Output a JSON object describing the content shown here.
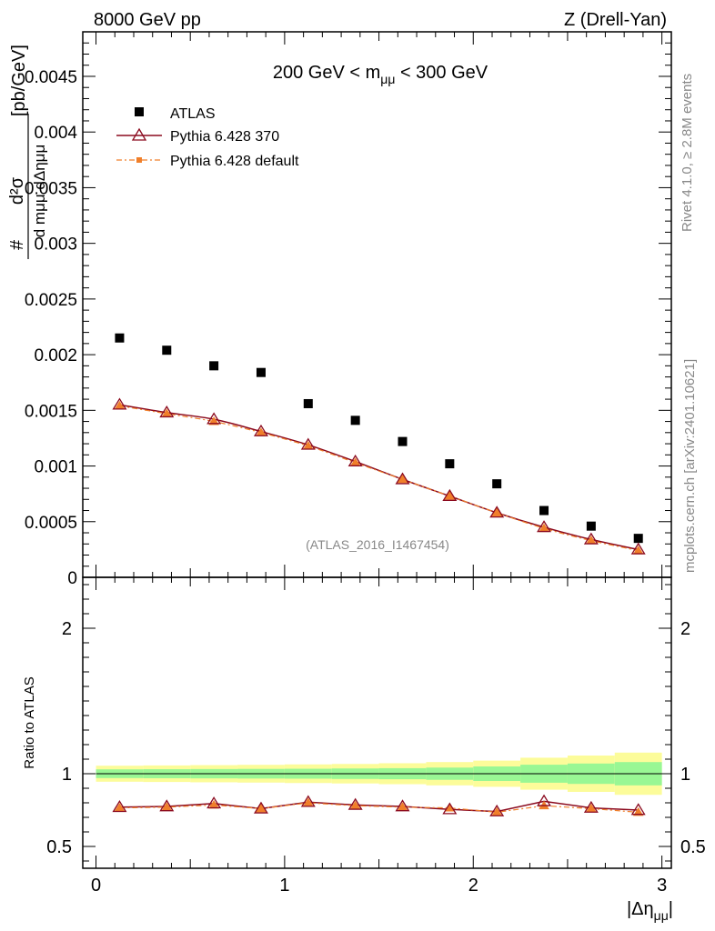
{
  "header": {
    "left": "8000 GeV pp",
    "right": "Z (Drell-Yan)"
  },
  "side": {
    "rivet": "Rivet 4.1.0, ≥ 2.8M events",
    "mcplots": "mcplots.cern.ch [arXiv:2401.10621]"
  },
  "colors": {
    "atlas": "#000000",
    "pythia370": "#8b0a1e",
    "pythia_default": "#f07f2a",
    "band_inner": "#99f794",
    "band_outer": "#fcfc9a"
  },
  "chart_data": [
    {
      "type": "scatter",
      "title": "200 GeV < m_μμ < 300 GeV",
      "title_parts": {
        "pre": "200 GeV < m",
        "sub": "μμ",
        "post": " < 300 GeV"
      },
      "ylabel": "d²σ / d m_μμ dΔη_μμ [pb/GeV]",
      "ylabel_parts": {
        "top": "d²σ",
        "bottom": "d mμμ dΔημμ",
        "hash": "#",
        "unit": "[pb/GeV]"
      },
      "watermark": "(ATLAS_2016_I1467454)",
      "xlim": [
        -0.07,
        3.05
      ],
      "ylim": [
        0,
        0.0049
      ],
      "yticks": [
        0,
        0.0005,
        0.001,
        0.0015,
        0.002,
        0.0025,
        0.003,
        0.0035,
        0.004,
        0.0045
      ],
      "ytick_labels": [
        "0",
        "0.0005",
        "0.001",
        "0.0015",
        "0.002",
        "0.0025",
        "0.003",
        "0.0035",
        "0.004",
        "0.0045"
      ],
      "legend_position": "top-left",
      "x": [
        0.125,
        0.375,
        0.625,
        0.875,
        1.125,
        1.375,
        1.625,
        1.875,
        2.125,
        2.375,
        2.625,
        2.875
      ],
      "series": [
        {
          "name": "ATLAS",
          "marker": "square",
          "values": [
            0.00215,
            0.00204,
            0.0019,
            0.00184,
            0.00156,
            0.00141,
            0.00122,
            0.00102,
            0.00084,
            0.0006,
            0.00046,
            0.00035
          ]
        },
        {
          "name": "Pythia 6.428 370",
          "marker": "triangle",
          "values": [
            0.00155,
            0.00148,
            0.00142,
            0.00131,
            0.00119,
            0.00104,
            0.00088,
            0.00073,
            0.00058,
            0.00045,
            0.00034,
            0.00025
          ]
        },
        {
          "name": "Pythia 6.428 default",
          "marker": "small-square",
          "values": [
            0.00154,
            0.00147,
            0.0014,
            0.0013,
            0.00118,
            0.00103,
            0.00088,
            0.00073,
            0.00058,
            0.00044,
            0.00033,
            0.00024
          ]
        }
      ]
    },
    {
      "type": "line",
      "ylabel": "Ratio to ATLAS",
      "xlabel": "|Δη_μμ|",
      "xlabel_parts": {
        "pre": "|Δη",
        "sub": "μμ",
        "post": "|"
      },
      "xlim": [
        -0.07,
        3.05
      ],
      "ylim": [
        0.35,
        2.35
      ],
      "xticks": [
        0,
        1,
        2,
        3
      ],
      "xtick_labels": [
        "0",
        "1",
        "2",
        "3"
      ],
      "yticks": [
        0.5,
        1,
        2
      ],
      "ytick_labels": [
        "0.5",
        "1",
        "2"
      ],
      "x": [
        0.125,
        0.375,
        0.625,
        0.875,
        1.125,
        1.375,
        1.625,
        1.875,
        2.125,
        2.375,
        2.625,
        2.875
      ],
      "bins": [
        0,
        0.25,
        0.5,
        0.75,
        1.0,
        1.25,
        1.5,
        1.75,
        2.0,
        2.25,
        2.5,
        2.75,
        3.0
      ],
      "band_inner_halfwidth": [
        0.03,
        0.031,
        0.032,
        0.033,
        0.034,
        0.036,
        0.038,
        0.042,
        0.05,
        0.062,
        0.07,
        0.08
      ],
      "band_outer_halfwidth": [
        0.055,
        0.057,
        0.059,
        0.061,
        0.064,
        0.067,
        0.072,
        0.08,
        0.09,
        0.11,
        0.125,
        0.145
      ],
      "series": [
        {
          "name": "Pythia 6.428 370",
          "marker": "triangle",
          "values": [
            0.77,
            0.775,
            0.795,
            0.76,
            0.805,
            0.785,
            0.775,
            0.755,
            0.74,
            0.81,
            0.765,
            0.75
          ]
        },
        {
          "name": "Pythia 6.428 default",
          "marker": "small-square",
          "values": [
            0.765,
            0.77,
            0.785,
            0.76,
            0.8,
            0.78,
            0.77,
            0.765,
            0.735,
            0.78,
            0.76,
            0.735
          ]
        }
      ]
    }
  ]
}
